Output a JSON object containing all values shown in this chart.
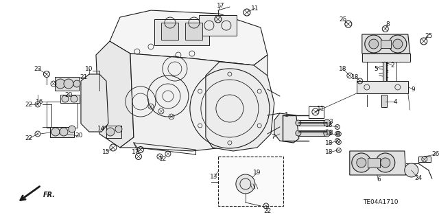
{
  "background_color": "#ffffff",
  "line_color": "#1a1a1a",
  "diagram_code": "TE04A1710",
  "figsize": [
    6.4,
    3.19
  ],
  "dpi": 100
}
